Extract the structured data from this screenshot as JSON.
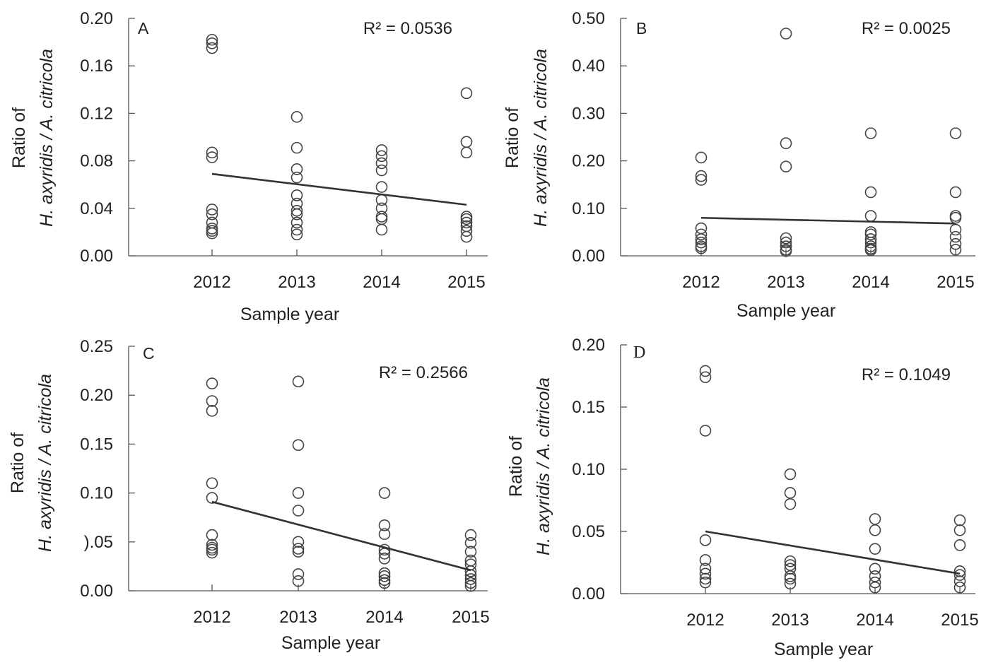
{
  "chart_data": [
    {
      "type": "scatter",
      "panel": "A",
      "xlabel": "Sample year",
      "ylabel_line1": "Ratio of",
      "ylabel_line2": "H. axyridis / A. citricola",
      "x_ticks": [
        "2012",
        "2013",
        "2014",
        "2015"
      ],
      "y_ticks": [
        "0.00",
        "0.04",
        "0.08",
        "0.12",
        "0.16",
        "0.20"
      ],
      "ylim": [
        0,
        0.2
      ],
      "annotation": "R² = 0.0536",
      "trendline": {
        "x": [
          2012,
          2015
        ],
        "y": [
          0.069,
          0.043
        ]
      },
      "points": [
        {
          "x": 2012,
          "y": [
            0.182,
            0.179,
            0.175,
            0.087,
            0.083,
            0.039,
            0.035,
            0.028,
            0.023,
            0.021,
            0.019
          ]
        },
        {
          "x": 2013,
          "y": [
            0.117,
            0.091,
            0.073,
            0.066,
            0.051,
            0.044,
            0.038,
            0.035,
            0.028,
            0.022,
            0.018
          ]
        },
        {
          "x": 2014,
          "y": [
            0.089,
            0.084,
            0.078,
            0.072,
            0.058,
            0.047,
            0.04,
            0.033,
            0.031,
            0.022
          ]
        },
        {
          "x": 2015,
          "y": [
            0.137,
            0.096,
            0.087,
            0.033,
            0.031,
            0.028,
            0.025,
            0.021,
            0.016
          ]
        }
      ]
    },
    {
      "type": "scatter",
      "panel": "B",
      "xlabel": "Sample year",
      "ylabel_line1": "Ratio of",
      "ylabel_line2": "H. axyridis / A. citricola",
      "x_ticks": [
        "2012",
        "2013",
        "2014",
        "2015"
      ],
      "y_ticks": [
        "0.00",
        "0.10",
        "0.20",
        "0.30",
        "0.40",
        "0.50"
      ],
      "ylim": [
        0,
        0.5
      ],
      "annotation": "R² = 0.0025",
      "trendline": {
        "x": [
          2012,
          2015
        ],
        "y": [
          0.08,
          0.068
        ]
      },
      "points": [
        {
          "x": 2012,
          "y": [
            0.207,
            0.168,
            0.16,
            0.058,
            0.045,
            0.035,
            0.028,
            0.02,
            0.016
          ]
        },
        {
          "x": 2013,
          "y": [
            0.468,
            0.237,
            0.188,
            0.037,
            0.028,
            0.02,
            0.013,
            0.01
          ]
        },
        {
          "x": 2014,
          "y": [
            0.258,
            0.134,
            0.084,
            0.05,
            0.045,
            0.035,
            0.028,
            0.02,
            0.015,
            0.012
          ]
        },
        {
          "x": 2015,
          "y": [
            0.258,
            0.134,
            0.084,
            0.08,
            0.055,
            0.04,
            0.025,
            0.013
          ]
        }
      ]
    },
    {
      "type": "scatter",
      "panel": "C",
      "xlabel": "Sample year",
      "ylabel_line1": "Ratio of",
      "ylabel_line2": "H. axyridis / A. citricola",
      "x_ticks": [
        "2012",
        "2013",
        "2014",
        "2015"
      ],
      "y_ticks": [
        "0.00",
        "0.05",
        "0.10",
        "0.15",
        "0.20",
        "0.25"
      ],
      "y_tick_display": [
        "0.00",
        ").05",
        "0.10",
        "0.15",
        "0.20",
        "0.25"
      ],
      "ylim": [
        0,
        0.25
      ],
      "annotation": "R² = 0.2566",
      "trendline": {
        "x": [
          2012,
          2015
        ],
        "y": [
          0.091,
          0.021
        ]
      },
      "points": [
        {
          "x": 2012,
          "y": [
            0.212,
            0.194,
            0.184,
            0.11,
            0.095,
            0.057,
            0.047,
            0.044,
            0.042,
            0.039
          ]
        },
        {
          "x": 2013,
          "y": [
            0.214,
            0.149,
            0.1,
            0.082,
            0.05,
            0.043,
            0.04,
            0.017,
            0.01
          ]
        },
        {
          "x": 2014,
          "y": [
            0.1,
            0.067,
            0.058,
            0.042,
            0.038,
            0.033,
            0.018,
            0.015,
            0.011,
            0.008
          ]
        },
        {
          "x": 2015,
          "y": [
            0.057,
            0.049,
            0.04,
            0.031,
            0.027,
            0.02,
            0.016,
            0.012,
            0.008,
            0.005
          ]
        }
      ]
    },
    {
      "type": "scatter",
      "panel": "D",
      "xlabel": "Sample year",
      "ylabel_line1": "Ratio of",
      "ylabel_line2": "H. axyridis / A. citricola",
      "x_ticks": [
        "2012",
        "2013",
        "2014",
        "2015"
      ],
      "y_ticks": [
        "0.00",
        "0.05",
        "0.10",
        "0.15",
        "0.20"
      ],
      "ylim": [
        0,
        0.2
      ],
      "annotation": "R² = 0.1049",
      "trendline": {
        "x": [
          2012,
          2015
        ],
        "y": [
          0.05,
          0.016
        ]
      },
      "points": [
        {
          "x": 2012,
          "y": [
            0.179,
            0.174,
            0.131,
            0.043,
            0.027,
            0.02,
            0.016,
            0.012,
            0.009
          ]
        },
        {
          "x": 2013,
          "y": [
            0.096,
            0.081,
            0.072,
            0.026,
            0.023,
            0.02,
            0.014,
            0.012,
            0.008
          ]
        },
        {
          "x": 2014,
          "y": [
            0.06,
            0.051,
            0.036,
            0.02,
            0.014,
            0.009,
            0.005
          ]
        },
        {
          "x": 2015,
          "y": [
            0.059,
            0.051,
            0.039,
            0.018,
            0.015,
            0.01,
            0.005
          ]
        }
      ]
    }
  ]
}
